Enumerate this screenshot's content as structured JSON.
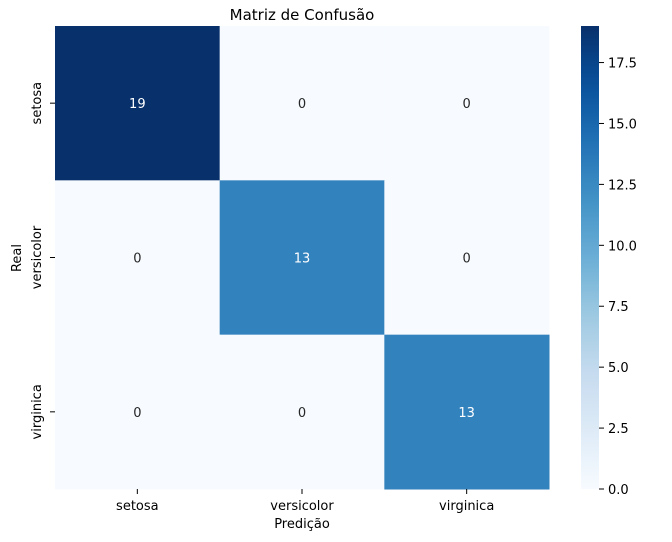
{
  "chart_data": {
    "type": "heatmap",
    "title": "Matriz de Confusão",
    "xlabel": "Predição",
    "ylabel": "Real",
    "x_categories": [
      "setosa",
      "versicolor",
      "virginica"
    ],
    "y_categories": [
      "setosa",
      "versicolor",
      "virginica"
    ],
    "values": [
      [
        19,
        0,
        0
      ],
      [
        0,
        13,
        0
      ],
      [
        0,
        0,
        13
      ]
    ],
    "colormap": "Blues",
    "color_range": [
      0,
      19
    ],
    "colorbar_ticks": [
      "0.0",
      "2.5",
      "5.0",
      "7.5",
      "10.0",
      "12.5",
      "15.0",
      "17.5"
    ],
    "annotations": true,
    "colors": {
      "low": "#f7fbff",
      "high": "#08306b",
      "dark_text": "#262626",
      "light_text": "#ffffff"
    }
  }
}
